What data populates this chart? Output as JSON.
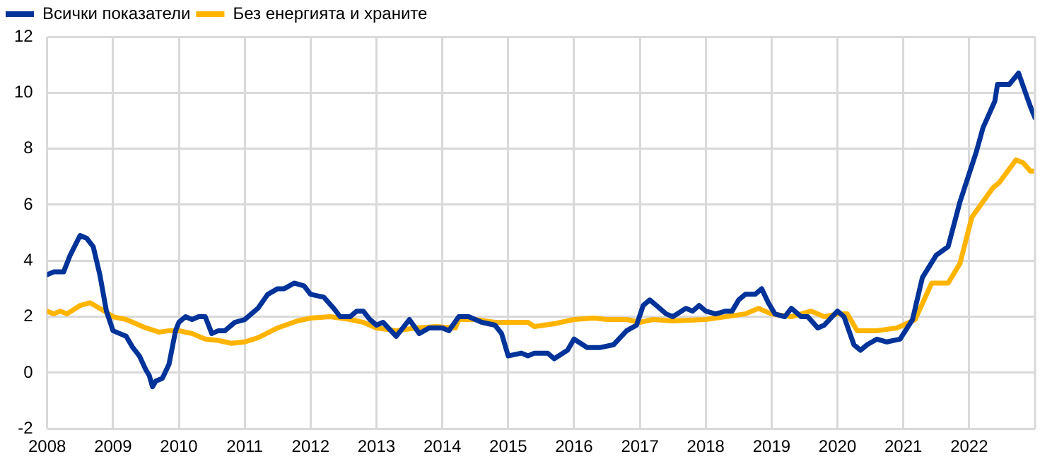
{
  "chart_data": {
    "type": "line",
    "legend": "top left",
    "grid": true,
    "marker": "none",
    "line_style": "solid",
    "xlim": [
      2008,
      2023
    ],
    "xticks": [
      2008,
      2009,
      2010,
      2011,
      2012,
      2013,
      2014,
      2015,
      2016,
      2017,
      2018,
      2019,
      2020,
      2021,
      2022
    ],
    "ylim": [
      -2,
      12
    ],
    "yticks": [
      -2,
      0,
      2,
      4,
      6,
      8,
      10,
      12
    ],
    "series": [
      {
        "name": "Всички показатели",
        "color": "#003399",
        "x": [
          2008.0,
          2008.1,
          2008.25,
          2008.35,
          2008.5,
          2008.6,
          2008.7,
          2008.8,
          2008.9,
          2009.0,
          2009.1,
          2009.2,
          2009.3,
          2009.4,
          2009.5,
          2009.55,
          2009.6,
          2009.65,
          2009.75,
          2009.85,
          2009.95,
          2010.0,
          2010.1,
          2010.2,
          2010.3,
          2010.4,
          2010.5,
          2010.6,
          2010.7,
          2010.85,
          2011.0,
          2011.2,
          2011.35,
          2011.5,
          2011.6,
          2011.75,
          2011.9,
          2012.0,
          2012.2,
          2012.35,
          2012.45,
          2012.6,
          2012.7,
          2012.8,
          2012.9,
          2013.0,
          2013.1,
          2013.3,
          2013.5,
          2013.65,
          2013.8,
          2014.0,
          2014.1,
          2014.25,
          2014.4,
          2014.6,
          2014.8,
          2014.9,
          2015.0,
          2015.2,
          2015.3,
          2015.4,
          2015.6,
          2015.7,
          2015.9,
          2016.0,
          2016.2,
          2016.4,
          2016.6,
          2016.8,
          2016.95,
          2017.05,
          2017.15,
          2017.25,
          2017.4,
          2017.5,
          2017.7,
          2017.8,
          2017.9,
          2018.0,
          2018.15,
          2018.3,
          2018.4,
          2018.5,
          2018.6,
          2018.75,
          2018.85,
          2018.95,
          2019.05,
          2019.2,
          2019.3,
          2019.45,
          2019.55,
          2019.7,
          2019.8,
          2020.0,
          2020.1,
          2020.25,
          2020.35,
          2020.45,
          2020.6,
          2020.75,
          2020.95,
          2021.14,
          2021.29,
          2021.5,
          2021.68,
          2021.86,
          2022.11,
          2022.21,
          2022.39,
          2022.43,
          2022.61,
          2022.75,
          2022.93,
          2023.0
        ],
        "values": [
          3.5,
          3.6,
          3.6,
          4.2,
          4.9,
          4.8,
          4.5,
          3.5,
          2.2,
          1.5,
          1.4,
          1.3,
          0.9,
          0.6,
          0.1,
          -0.1,
          -0.5,
          -0.3,
          -0.2,
          0.3,
          1.5,
          1.8,
          2.0,
          1.9,
          2.0,
          2.0,
          1.4,
          1.5,
          1.5,
          1.8,
          1.9,
          2.3,
          2.8,
          3.0,
          3.0,
          3.2,
          3.1,
          2.8,
          2.7,
          2.3,
          2.0,
          2.0,
          2.2,
          2.2,
          1.9,
          1.7,
          1.8,
          1.3,
          1.9,
          1.4,
          1.6,
          1.6,
          1.5,
          2.0,
          2.0,
          1.8,
          1.7,
          1.4,
          0.6,
          0.7,
          0.6,
          0.7,
          0.7,
          0.5,
          0.8,
          1.2,
          0.9,
          0.9,
          1.0,
          1.5,
          1.7,
          2.4,
          2.6,
          2.4,
          2.1,
          2.0,
          2.3,
          2.2,
          2.4,
          2.2,
          2.1,
          2.2,
          2.2,
          2.6,
          2.8,
          2.8,
          3.0,
          2.5,
          2.1,
          2.0,
          2.3,
          2.0,
          2.0,
          1.6,
          1.7,
          2.2,
          2.0,
          1.0,
          0.8,
          1.0,
          1.2,
          1.1,
          1.2,
          1.9,
          3.4,
          4.2,
          4.5,
          6.1,
          7.9,
          8.75,
          9.7,
          10.3,
          10.3,
          10.7,
          9.5,
          9.1
        ]
      },
      {
        "name": "Без енергията и храните",
        "color": "#ffb400",
        "x": [
          2008.0,
          2008.1,
          2008.2,
          2008.3,
          2008.5,
          2008.65,
          2008.8,
          2009.0,
          2009.2,
          2009.5,
          2009.7,
          2009.85,
          2010.0,
          2010.2,
          2010.4,
          2010.6,
          2010.8,
          2011.0,
          2011.2,
          2011.5,
          2011.8,
          2012.0,
          2012.3,
          2012.6,
          2012.8,
          2013.0,
          2013.3,
          2013.6,
          2013.9,
          2014.2,
          2014.25,
          2014.5,
          2014.8,
          2015.0,
          2015.3,
          2015.4,
          2015.7,
          2016.0,
          2016.3,
          2016.5,
          2016.8,
          2017.0,
          2017.2,
          2017.5,
          2018.0,
          2018.3,
          2018.6,
          2018.8,
          2019.0,
          2019.3,
          2019.6,
          2019.8,
          2020.0,
          2020.15,
          2020.3,
          2020.6,
          2020.9,
          2021.0,
          2021.18,
          2021.43,
          2021.68,
          2021.86,
          2022.04,
          2022.36,
          2022.46,
          2022.71,
          2022.82,
          2022.93,
          2023.0
        ],
        "values": [
          2.2,
          2.1,
          2.2,
          2.1,
          2.4,
          2.5,
          2.3,
          2.0,
          1.9,
          1.6,
          1.45,
          1.5,
          1.5,
          1.4,
          1.2,
          1.15,
          1.05,
          1.1,
          1.25,
          1.6,
          1.85,
          1.95,
          2.0,
          1.9,
          1.8,
          1.6,
          1.5,
          1.6,
          1.65,
          1.6,
          1.9,
          1.9,
          1.8,
          1.8,
          1.8,
          1.65,
          1.75,
          1.9,
          1.95,
          1.9,
          1.9,
          1.8,
          1.9,
          1.85,
          1.9,
          2.0,
          2.1,
          2.3,
          2.1,
          2.0,
          2.2,
          2.0,
          2.1,
          2.1,
          1.5,
          1.5,
          1.6,
          1.7,
          1.9,
          3.2,
          3.2,
          3.9,
          5.55,
          6.6,
          6.8,
          7.6,
          7.5,
          7.2,
          7.2
        ]
      }
    ]
  }
}
